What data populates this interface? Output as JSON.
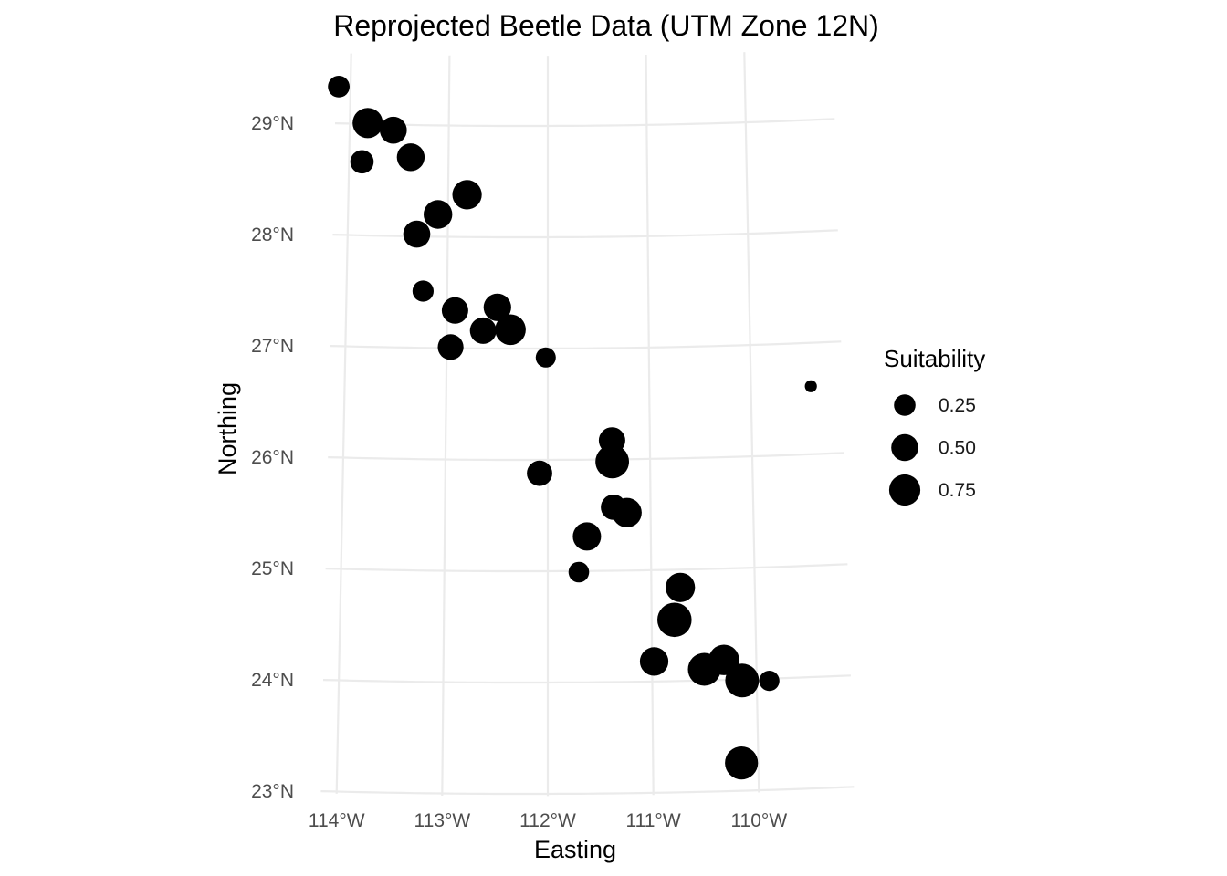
{
  "chart_data": {
    "type": "scatter",
    "title": "Reprojected Beetle Data (UTM Zone 12N)",
    "xlabel": "Easting",
    "ylabel": "Northing",
    "x_ticks": [
      {
        "value": -114,
        "label": "114°W"
      },
      {
        "value": -113,
        "label": "113°W"
      },
      {
        "value": -112,
        "label": "112°W"
      },
      {
        "value": -111,
        "label": "111°W"
      },
      {
        "value": -110,
        "label": "110°W"
      }
    ],
    "y_ticks": [
      {
        "value": 23,
        "label": "23°N"
      },
      {
        "value": 24,
        "label": "24°N"
      },
      {
        "value": 25,
        "label": "25°N"
      },
      {
        "value": 26,
        "label": "26°N"
      },
      {
        "value": 27,
        "label": "27°N"
      },
      {
        "value": 28,
        "label": "28°N"
      },
      {
        "value": 29,
        "label": "29°N"
      }
    ],
    "xlim": [
      -114.2,
      -109.3
    ],
    "ylim": [
      23.0,
      29.6
    ],
    "grid": true,
    "legend": {
      "title": "Suitability",
      "placement": "right",
      "entries": [
        {
          "value": 0.25,
          "label": "0.25"
        },
        {
          "value": 0.5,
          "label": "0.50"
        },
        {
          "value": 0.75,
          "label": "0.75"
        }
      ]
    },
    "marker_color": "#000000",
    "points": [
      {
        "lon": -114.12,
        "lat": 29.33,
        "suitability": 0.26
      },
      {
        "lon": -113.82,
        "lat": 29.01,
        "suitability": 0.7
      },
      {
        "lon": -113.56,
        "lat": 28.95,
        "suitability": 0.5
      },
      {
        "lon": -113.87,
        "lat": 28.66,
        "suitability": 0.33
      },
      {
        "lon": -113.38,
        "lat": 28.71,
        "suitability": 0.54
      },
      {
        "lon": -112.81,
        "lat": 28.38,
        "suitability": 0.64
      },
      {
        "lon": -113.1,
        "lat": 28.2,
        "suitability": 0.6
      },
      {
        "lon": -113.31,
        "lat": 28.02,
        "suitability": 0.5
      },
      {
        "lon": -113.24,
        "lat": 27.51,
        "suitability": 0.24
      },
      {
        "lon": -112.92,
        "lat": 27.34,
        "suitability": 0.48
      },
      {
        "lon": -112.5,
        "lat": 27.37,
        "suitability": 0.53
      },
      {
        "lon": -112.37,
        "lat": 27.17,
        "suitability": 0.72
      },
      {
        "lon": -112.64,
        "lat": 27.16,
        "suitability": 0.48
      },
      {
        "lon": -112.96,
        "lat": 27.01,
        "suitability": 0.44
      },
      {
        "lon": -112.02,
        "lat": 26.92,
        "suitability": 0.2
      },
      {
        "lon": -109.41,
        "lat": 26.61,
        "suitability": 0.02
      },
      {
        "lon": -111.37,
        "lat": 26.17,
        "suitability": 0.48
      },
      {
        "lon": -111.37,
        "lat": 25.98,
        "suitability": 0.92
      },
      {
        "lon": -112.08,
        "lat": 25.88,
        "suitability": 0.42
      },
      {
        "lon": -111.36,
        "lat": 25.57,
        "suitability": 0.42
      },
      {
        "lon": -111.23,
        "lat": 25.52,
        "suitability": 0.65
      },
      {
        "lon": -111.62,
        "lat": 25.31,
        "suitability": 0.58
      },
      {
        "lon": -111.7,
        "lat": 24.99,
        "suitability": 0.22
      },
      {
        "lon": -110.72,
        "lat": 24.84,
        "suitability": 0.64
      },
      {
        "lon": -110.78,
        "lat": 24.55,
        "suitability": 0.97
      },
      {
        "lon": -110.98,
        "lat": 24.18,
        "suitability": 0.59
      },
      {
        "lon": -110.31,
        "lat": 24.18,
        "suitability": 0.71
      },
      {
        "lon": -110.5,
        "lat": 24.1,
        "suitability": 0.87
      },
      {
        "lon": -110.14,
        "lat": 23.99,
        "suitability": 0.93
      },
      {
        "lon": -109.88,
        "lat": 23.98,
        "suitability": 0.21
      },
      {
        "lon": -110.16,
        "lat": 23.25,
        "suitability": 0.88
      }
    ]
  }
}
